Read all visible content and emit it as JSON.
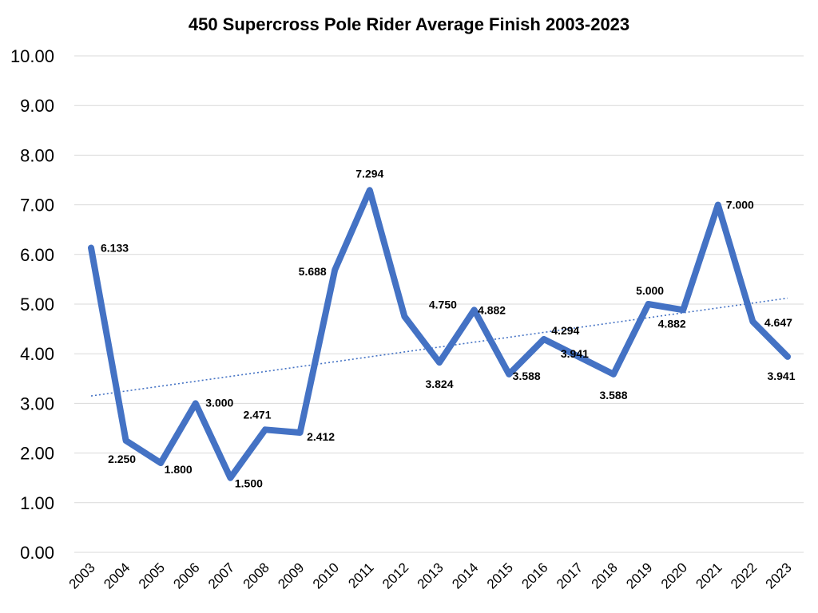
{
  "chart_data": {
    "type": "line",
    "title": "450 Supercross Pole Rider Average Finish 2003-2023",
    "xlabel": "",
    "ylabel": "",
    "ylim": [
      0,
      10
    ],
    "ytick_labels": [
      "0.00",
      "1.00",
      "2.00",
      "3.00",
      "4.00",
      "5.00",
      "6.00",
      "7.00",
      "8.00",
      "9.00",
      "10.00"
    ],
    "categories": [
      "2003",
      "2004",
      "2005",
      "2006",
      "2007",
      "2008",
      "2009",
      "2010",
      "2011",
      "2012",
      "2013",
      "2014",
      "2015",
      "2016",
      "2017",
      "2018",
      "2019",
      "2020",
      "2021",
      "2022",
      "2023"
    ],
    "series": [
      {
        "values": [
          6.133,
          2.25,
          1.8,
          3.0,
          1.5,
          2.471,
          2.412,
          5.688,
          7.294,
          4.75,
          3.824,
          4.882,
          3.588,
          4.294,
          3.941,
          3.588,
          5.0,
          4.882,
          7.0,
          4.647,
          3.941
        ],
        "data_labels": [
          "6.133",
          "2.250",
          "1.800",
          "3.000",
          "1.500",
          "2.471",
          "2.412",
          "5.688",
          "7.294",
          "4.750",
          "3.824",
          "4.882",
          "3.588",
          "4.294",
          "3.941",
          "3.588",
          "5.000",
          "4.882",
          "7.000",
          "4.647",
          "3.941"
        ],
        "color": "#4472c4"
      }
    ],
    "trendline": {
      "type": "linear",
      "style": "dotted",
      "start_value": 3.15,
      "end_value": 5.12,
      "color": "#4472c4"
    },
    "grid": true,
    "legend": "none"
  }
}
